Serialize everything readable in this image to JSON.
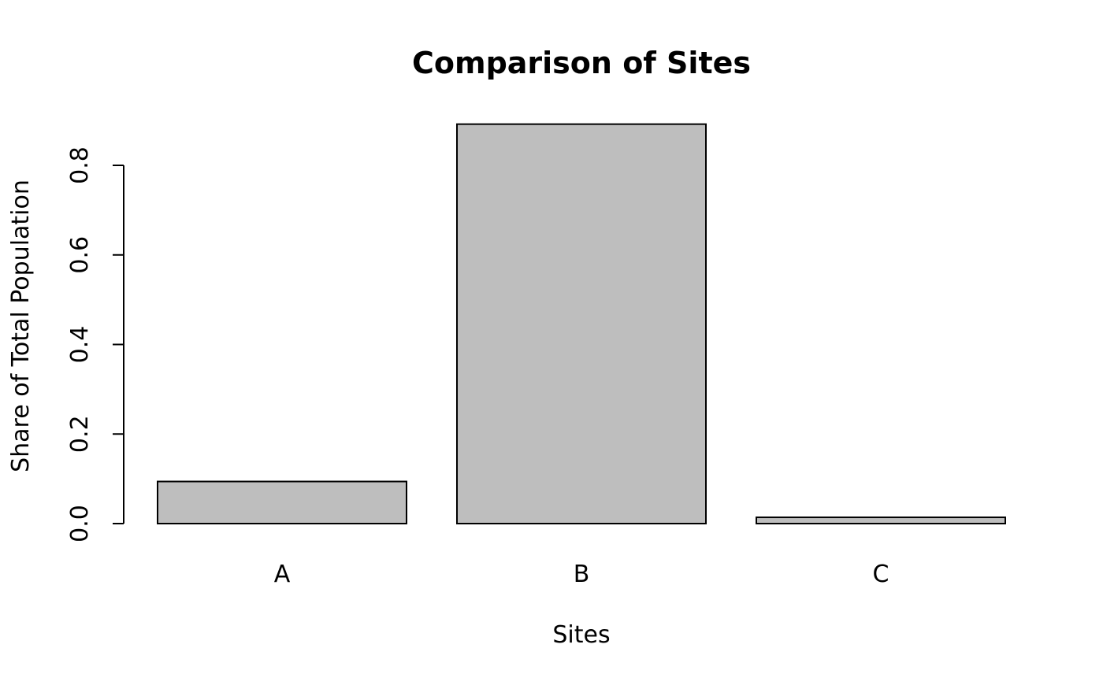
{
  "chart_data": {
    "type": "bar",
    "title": "Comparison of Sites",
    "xlabel": "Sites",
    "ylabel": "Share of Total Population",
    "categories": [
      "A",
      "B",
      "C"
    ],
    "values": [
      0.094,
      0.892,
      0.014
    ],
    "ylim": [
      0,
      0.8
    ],
    "yticks": [
      "0.0",
      "0.2",
      "0.4",
      "0.6",
      "0.8"
    ],
    "grid": false,
    "legend": "none",
    "colors": {
      "bar_fill": "#bebebe",
      "bar_stroke": "#000000",
      "axis": "#000000",
      "background": "#ffffff"
    }
  }
}
